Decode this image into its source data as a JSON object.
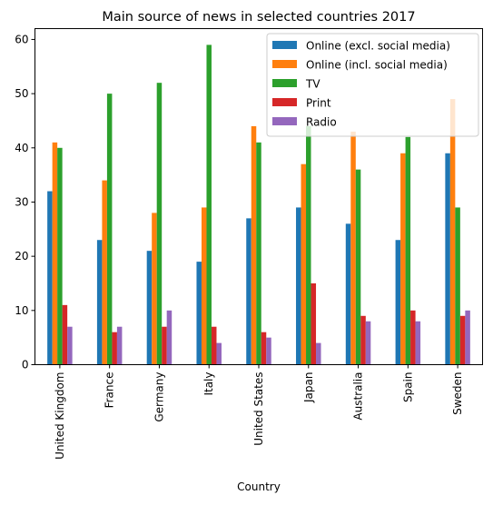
{
  "chart_data": {
    "type": "bar",
    "title": "Main source of news in selected countries 2017",
    "xlabel": "Country",
    "ylabel": "",
    "ylim": [
      0,
      62
    ],
    "yticks": [
      0,
      10,
      20,
      30,
      40,
      50,
      60
    ],
    "grid": false,
    "legend_position": "top-right",
    "categories": [
      "United Kingdom",
      "France",
      "Germany",
      "Italy",
      "United States",
      "Japan",
      "Australia",
      "Spain",
      "Sweden"
    ],
    "series": [
      {
        "name": "Online (excl. social media)",
        "color": "#1f77b4",
        "values": [
          32,
          23,
          21,
          19,
          27,
          29,
          26,
          23,
          39
        ]
      },
      {
        "name": "Online (incl. social media)",
        "color": "#ff7f0e",
        "values": [
          41,
          34,
          28,
          29,
          44,
          37,
          43,
          39,
          49
        ]
      },
      {
        "name": "TV",
        "color": "#2ca02c",
        "values": [
          40,
          50,
          52,
          59,
          41,
          44,
          36,
          42,
          29
        ]
      },
      {
        "name": "Print",
        "color": "#d62728",
        "values": [
          11,
          6,
          7,
          7,
          6,
          15,
          9,
          10,
          9
        ]
      },
      {
        "name": "Radio",
        "color": "#9467bd",
        "values": [
          7,
          7,
          10,
          4,
          5,
          4,
          8,
          8,
          10
        ]
      }
    ]
  }
}
